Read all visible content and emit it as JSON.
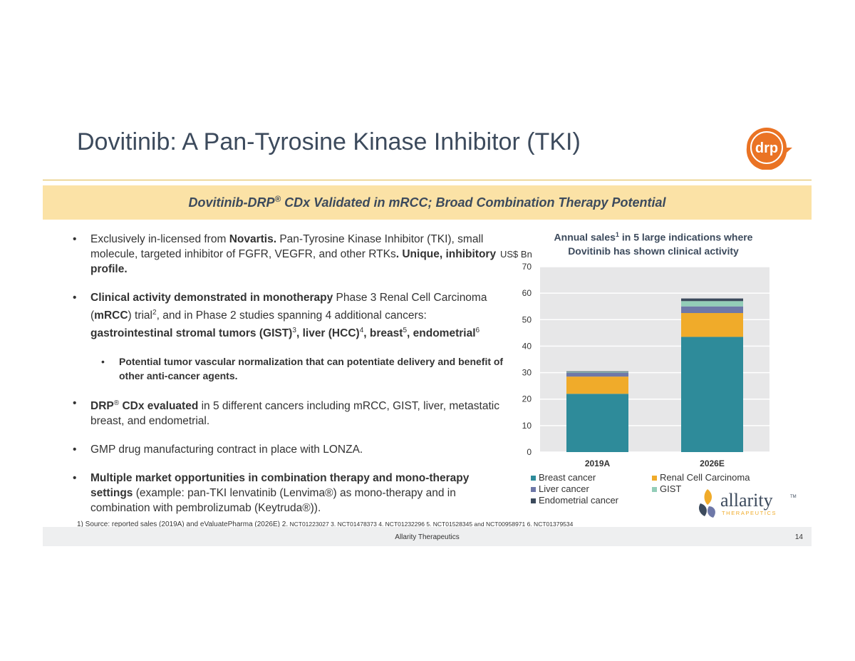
{
  "slide": {
    "title": "Dovitinib: A Pan-Tyrosine Kinase Inhibitor (TKI)",
    "banner": {
      "part1": "Dovitinib-DRP",
      "reg": "®",
      "part2": " CDx Validated in mRCC; Broad Combination Therapy Potential"
    },
    "logo_text": "drp"
  },
  "bullets": {
    "b1": {
      "t1": "Exclusively in-licensed from ",
      "t2": "Novartis.",
      "t3": " Pan-Tyrosine Kinase Inhibitor (TKI), small molecule, targeted inhibitor of FGFR, VEGFR, and other RTKs",
      "t4": ". Unique, inhibitory profile."
    },
    "b2": {
      "t1": "Clinical activity demonstrated in monotherapy",
      "t2": " Phase 3 Renal Cell Carcinoma (",
      "t3": "mRCC",
      "t4": ") trial",
      "s1": "2",
      "t5": ", and in Phase 2 studies spanning 4 additional cancers: ",
      "t6": "gastrointestinal stromal tumors (GIST)",
      "s2": "3",
      "t7": ", liver (HCC)",
      "s3": "4",
      "t8": ", breast",
      "s4": "5",
      "t9": ", endometrial",
      "s5": "6"
    },
    "b3": {
      "t1": "Potential tumor vascular normalization that can potentiate delivery and benefit of other anti-cancer agents."
    },
    "b4": {
      "t1": "DRP",
      "reg": "®",
      "t2": " CDx evaluated",
      "t3": " in 5 different cancers including mRCC, GIST, liver, metastatic breast, and endometrial."
    },
    "b5": {
      "t1": "GMP drug manufacturing contract in place with LONZA."
    },
    "b6": {
      "t1": "Multiple market opportunities in combination therapy and mono-therapy settings",
      "t2": " (example: pan-TKI lenvatinib (Lenvima®) as mono-therapy and in combination with pembrolizumab (Keytruda®))."
    }
  },
  "chart_data": {
    "type": "bar",
    "stacked": true,
    "title_part1": "Annual sales",
    "title_sup": "1",
    "title_part2": " in 5 large indications where Dovitinib has shown clinical activity",
    "ylabel": "US$ Bn",
    "categories": [
      "2019A",
      "2026E"
    ],
    "ylim": [
      0,
      70
    ],
    "yticks": [
      0,
      10,
      20,
      30,
      40,
      50,
      60,
      70
    ],
    "grid": true,
    "legend_position": "bottom",
    "series": [
      {
        "name": "Breast cancer",
        "color": "#2e8b9a",
        "values": [
          22,
          43.5
        ]
      },
      {
        "name": "Renal Cell Carcinoma",
        "color": "#f0ab2a",
        "values": [
          6.5,
          9
        ]
      },
      {
        "name": "Liver cancer",
        "color": "#6e78a8",
        "values": [
          1.5,
          2.5
        ]
      },
      {
        "name": "GIST",
        "color": "#93cdb8",
        "values": [
          0.3,
          2
        ]
      },
      {
        "name": "Endometrial cancer",
        "color": "#3c4a5c",
        "values": [
          0.2,
          1
        ]
      }
    ]
  },
  "footnote": {
    "lead": "1)   Source: reported sales (2019A) and eValuatePharma (2026E)  2.",
    "small": " NCT01223027 3. NCT01478373  4. NCT01232296  5. NCT01528345  and NCT00958971  6. NCT01379534"
  },
  "brand": {
    "allarity_word": "allarity",
    "tm": "TM",
    "therapeutics": "THERAPEUTICS"
  },
  "footer": {
    "company": "Allarity Therapeutics",
    "page": "14"
  }
}
